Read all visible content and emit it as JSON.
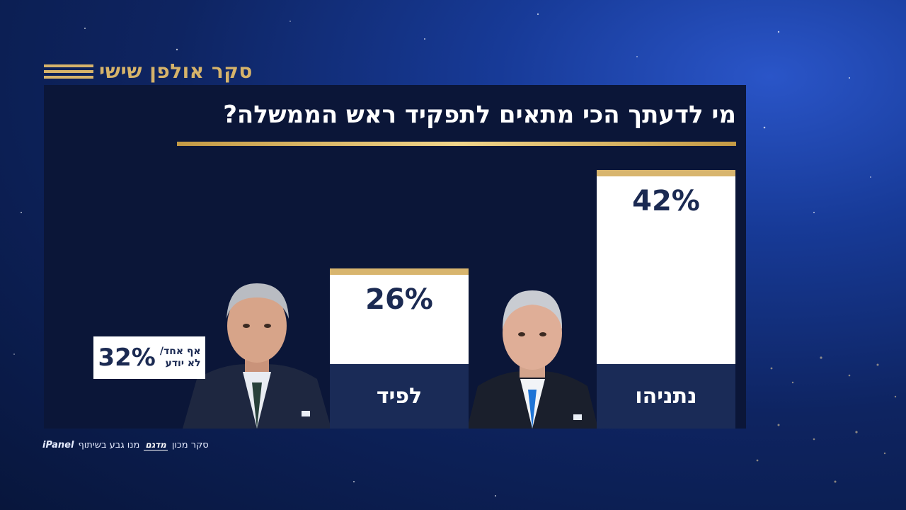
{
  "header": {
    "brand": "סקר אולפן שישי",
    "accent": "#d6b36a"
  },
  "chart_data": {
    "type": "bar",
    "title": "מי לדעתך הכי מתאים לתפקיד ראש הממשלה?",
    "categories": [
      "נתניהו",
      "לפיד"
    ],
    "values": [
      42,
      26
    ],
    "value_labels": [
      "42%",
      "26%"
    ],
    "ylim": [
      0,
      42
    ],
    "other": {
      "label_line1": "אף אחד/",
      "label_line2": "לא יודע",
      "value": 32,
      "value_label": "32%"
    }
  },
  "portraits": {
    "netanyahu": "portrait-netanyahu",
    "lapid": "portrait-lapid"
  },
  "footer": {
    "prefix": "סקר מכון",
    "logo": "מדגם",
    "suffix": "מנו גבע בשיתוף",
    "partner": "iPanel"
  },
  "colors": {
    "panel": "#0b1638",
    "bar": "#ffffff",
    "bar_top": "#d8b56e",
    "label_box": "#1a2b57",
    "text_dark": "#1b2a52"
  }
}
